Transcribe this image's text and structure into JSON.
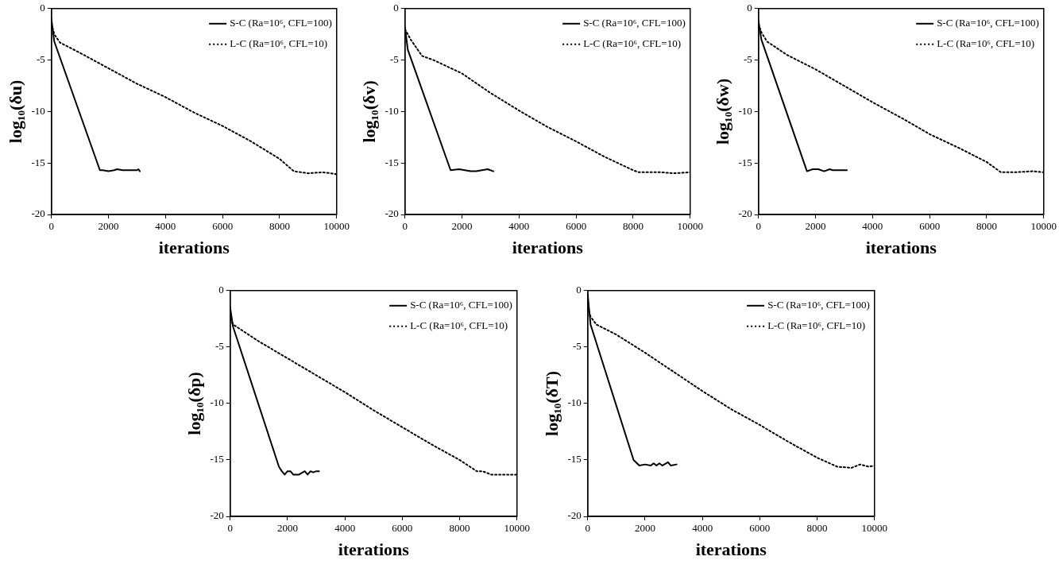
{
  "chart_data": [
    {
      "type": "line",
      "xlabel": "iterations",
      "ylabel": "log₁₀(δu)",
      "xlim": [
        0,
        10000
      ],
      "xticks": [
        0,
        2000,
        4000,
        6000,
        8000,
        10000
      ],
      "ylim": [
        -20,
        0
      ],
      "yticks": [
        -20,
        -15,
        -10,
        -5,
        0
      ],
      "grid": false,
      "legend": "top right",
      "marker": "none",
      "series": [
        {
          "name": "S-C (Ra=10⁶, CFL=100)",
          "color": "#000000",
          "line_style": "solid",
          "x": [
            0,
            100,
            1700,
            1800,
            2000,
            2200,
            2300,
            2500,
            3000,
            3050,
            3100
          ],
          "values": [
            -1,
            -3.2,
            -15.7,
            -15.7,
            -15.8,
            -15.7,
            -15.6,
            -15.7,
            -15.7,
            -15.6,
            -15.8
          ]
        },
        {
          "name": "L-C (Ra=10⁶, CFL=10)",
          "color": "#000000",
          "line_style": "dotted",
          "x": [
            0,
            100,
            300,
            1000,
            2000,
            3000,
            4000,
            5000,
            6000,
            7000,
            8000,
            8500,
            9000,
            9500,
            9800,
            10000
          ],
          "values": [
            -1.5,
            -2.5,
            -3.3,
            -4.3,
            -5.8,
            -7.3,
            -8.6,
            -10.1,
            -11.4,
            -12.9,
            -14.6,
            -15.8,
            -16,
            -15.9,
            -16,
            -16.1
          ]
        }
      ]
    },
    {
      "type": "line",
      "xlabel": "iterations",
      "ylabel": "log₁₀(δv)",
      "xlim": [
        0,
        10000
      ],
      "xticks": [
        0,
        2000,
        4000,
        6000,
        8000,
        10000
      ],
      "ylim": [
        -20,
        0
      ],
      "yticks": [
        -20,
        -15,
        -10,
        -5,
        0
      ],
      "grid": false,
      "legend": "top right",
      "marker": "none",
      "series": [
        {
          "name": "S-C (Ra=10⁶, CFL=100)",
          "color": "#000000",
          "line_style": "solid",
          "x": [
            0,
            100,
            1600,
            1900,
            2100,
            2300,
            2500,
            2700,
            2900,
            3100
          ],
          "values": [
            -1.8,
            -4,
            -15.7,
            -15.6,
            -15.7,
            -15.8,
            -15.8,
            -15.7,
            -15.6,
            -15.8
          ]
        },
        {
          "name": "L-C (Ra=10⁶, CFL=10)",
          "color": "#000000",
          "line_style": "dotted",
          "x": [
            0,
            200,
            600,
            1000,
            2000,
            3000,
            4000,
            5000,
            6000,
            7000,
            8000,
            8200,
            9000,
            9400,
            10000
          ],
          "values": [
            -2,
            -3,
            -4.6,
            -5,
            -6.3,
            -8.2,
            -9.9,
            -11.5,
            -12.9,
            -14.4,
            -15.7,
            -15.9,
            -15.9,
            -16,
            -15.9
          ]
        }
      ]
    },
    {
      "type": "line",
      "xlabel": "iterations",
      "ylabel": "log₁₀(δw)",
      "xlim": [
        0,
        10000
      ],
      "xticks": [
        0,
        2000,
        4000,
        6000,
        8000,
        10000
      ],
      "ylim": [
        -20,
        0
      ],
      "yticks": [
        -20,
        -15,
        -10,
        -5,
        0
      ],
      "grid": false,
      "legend": "top right",
      "marker": "none",
      "series": [
        {
          "name": "S-C (Ra=10⁶, CFL=100)",
          "color": "#000000",
          "line_style": "solid",
          "x": [
            0,
            100,
            1700,
            1900,
            2100,
            2300,
            2500,
            2600,
            3100
          ],
          "values": [
            -1.2,
            -3,
            -15.8,
            -15.6,
            -15.6,
            -15.8,
            -15.6,
            -15.7,
            -15.7
          ]
        },
        {
          "name": "L-C (Ra=10⁶, CFL=10)",
          "color": "#000000",
          "line_style": "dotted",
          "x": [
            0,
            100,
            300,
            1000,
            2000,
            3000,
            4000,
            5000,
            6000,
            7000,
            8000,
            8500,
            9000,
            9600,
            10000
          ],
          "values": [
            -1.5,
            -2.3,
            -3.2,
            -4.5,
            -5.9,
            -7.5,
            -9.1,
            -10.6,
            -12.2,
            -13.5,
            -14.9,
            -15.9,
            -15.9,
            -15.8,
            -15.9
          ]
        }
      ]
    },
    {
      "type": "line",
      "xlabel": "iterations",
      "ylabel": "log₁₀(δp)",
      "xlim": [
        0,
        10000
      ],
      "xticks": [
        0,
        2000,
        4000,
        6000,
        8000,
        10000
      ],
      "ylim": [
        -20,
        0
      ],
      "yticks": [
        -20,
        -15,
        -10,
        -5,
        0
      ],
      "grid": false,
      "legend": "top right",
      "marker": "none",
      "series": [
        {
          "name": "S-C (Ra=10⁶, CFL=100)",
          "color": "#000000",
          "line_style": "solid",
          "x": [
            0,
            100,
            1700,
            1800,
            1900,
            2000,
            2100,
            2200,
            2400,
            2600,
            2700,
            2800,
            2900,
            3000,
            3100
          ],
          "values": [
            -1.5,
            -3.2,
            -15.6,
            -16,
            -16.3,
            -16,
            -16,
            -16.3,
            -16.3,
            -16,
            -16.3,
            -16,
            -16.1,
            -16,
            -16
          ]
        },
        {
          "name": "L-C (Ra=10⁶, CFL=10)",
          "color": "#000000",
          "line_style": "dotted",
          "x": [
            0,
            100,
            1000,
            2000,
            3000,
            4000,
            5000,
            6000,
            7000,
            8000,
            8600,
            8800,
            9100,
            10000
          ],
          "values": [
            -2.5,
            -3,
            -4.5,
            -6,
            -7.5,
            -9,
            -10.6,
            -12.1,
            -13.6,
            -15,
            -16,
            -16,
            -16.3,
            -16.3
          ]
        }
      ]
    },
    {
      "type": "line",
      "xlabel": "iterations",
      "ylabel": "log₁₀(δT)",
      "xlim": [
        0,
        10000
      ],
      "xticks": [
        0,
        2000,
        4000,
        6000,
        8000,
        10000
      ],
      "ylim": [
        -20,
        0
      ],
      "yticks": [
        -20,
        -15,
        -10,
        -5,
        0
      ],
      "grid": false,
      "legend": "top right",
      "marker": "none",
      "series": [
        {
          "name": "S-C (Ra=10⁶, CFL=100)",
          "color": "#000000",
          "line_style": "solid",
          "x": [
            0,
            100,
            1600,
            1800,
            2000,
            2200,
            2300,
            2400,
            2500,
            2600,
            2800,
            2900,
            3100
          ],
          "values": [
            -0.3,
            -3,
            -15,
            -15.5,
            -15.4,
            -15.5,
            -15.3,
            -15.5,
            -15.3,
            -15.5,
            -15.2,
            -15.5,
            -15.4
          ]
        },
        {
          "name": "L-C (Ra=10⁶, CFL=10)",
          "color": "#000000",
          "line_style": "dotted",
          "x": [
            0,
            100,
            300,
            1000,
            2000,
            3000,
            4000,
            5000,
            6000,
            7000,
            8000,
            8700,
            9200,
            9500,
            9800,
            10000
          ],
          "values": [
            -1.5,
            -2.3,
            -3,
            -3.9,
            -5.5,
            -7.2,
            -8.9,
            -10.5,
            -11.9,
            -13.4,
            -14.8,
            -15.6,
            -15.7,
            -15.4,
            -15.6,
            -15.5
          ]
        }
      ]
    }
  ]
}
